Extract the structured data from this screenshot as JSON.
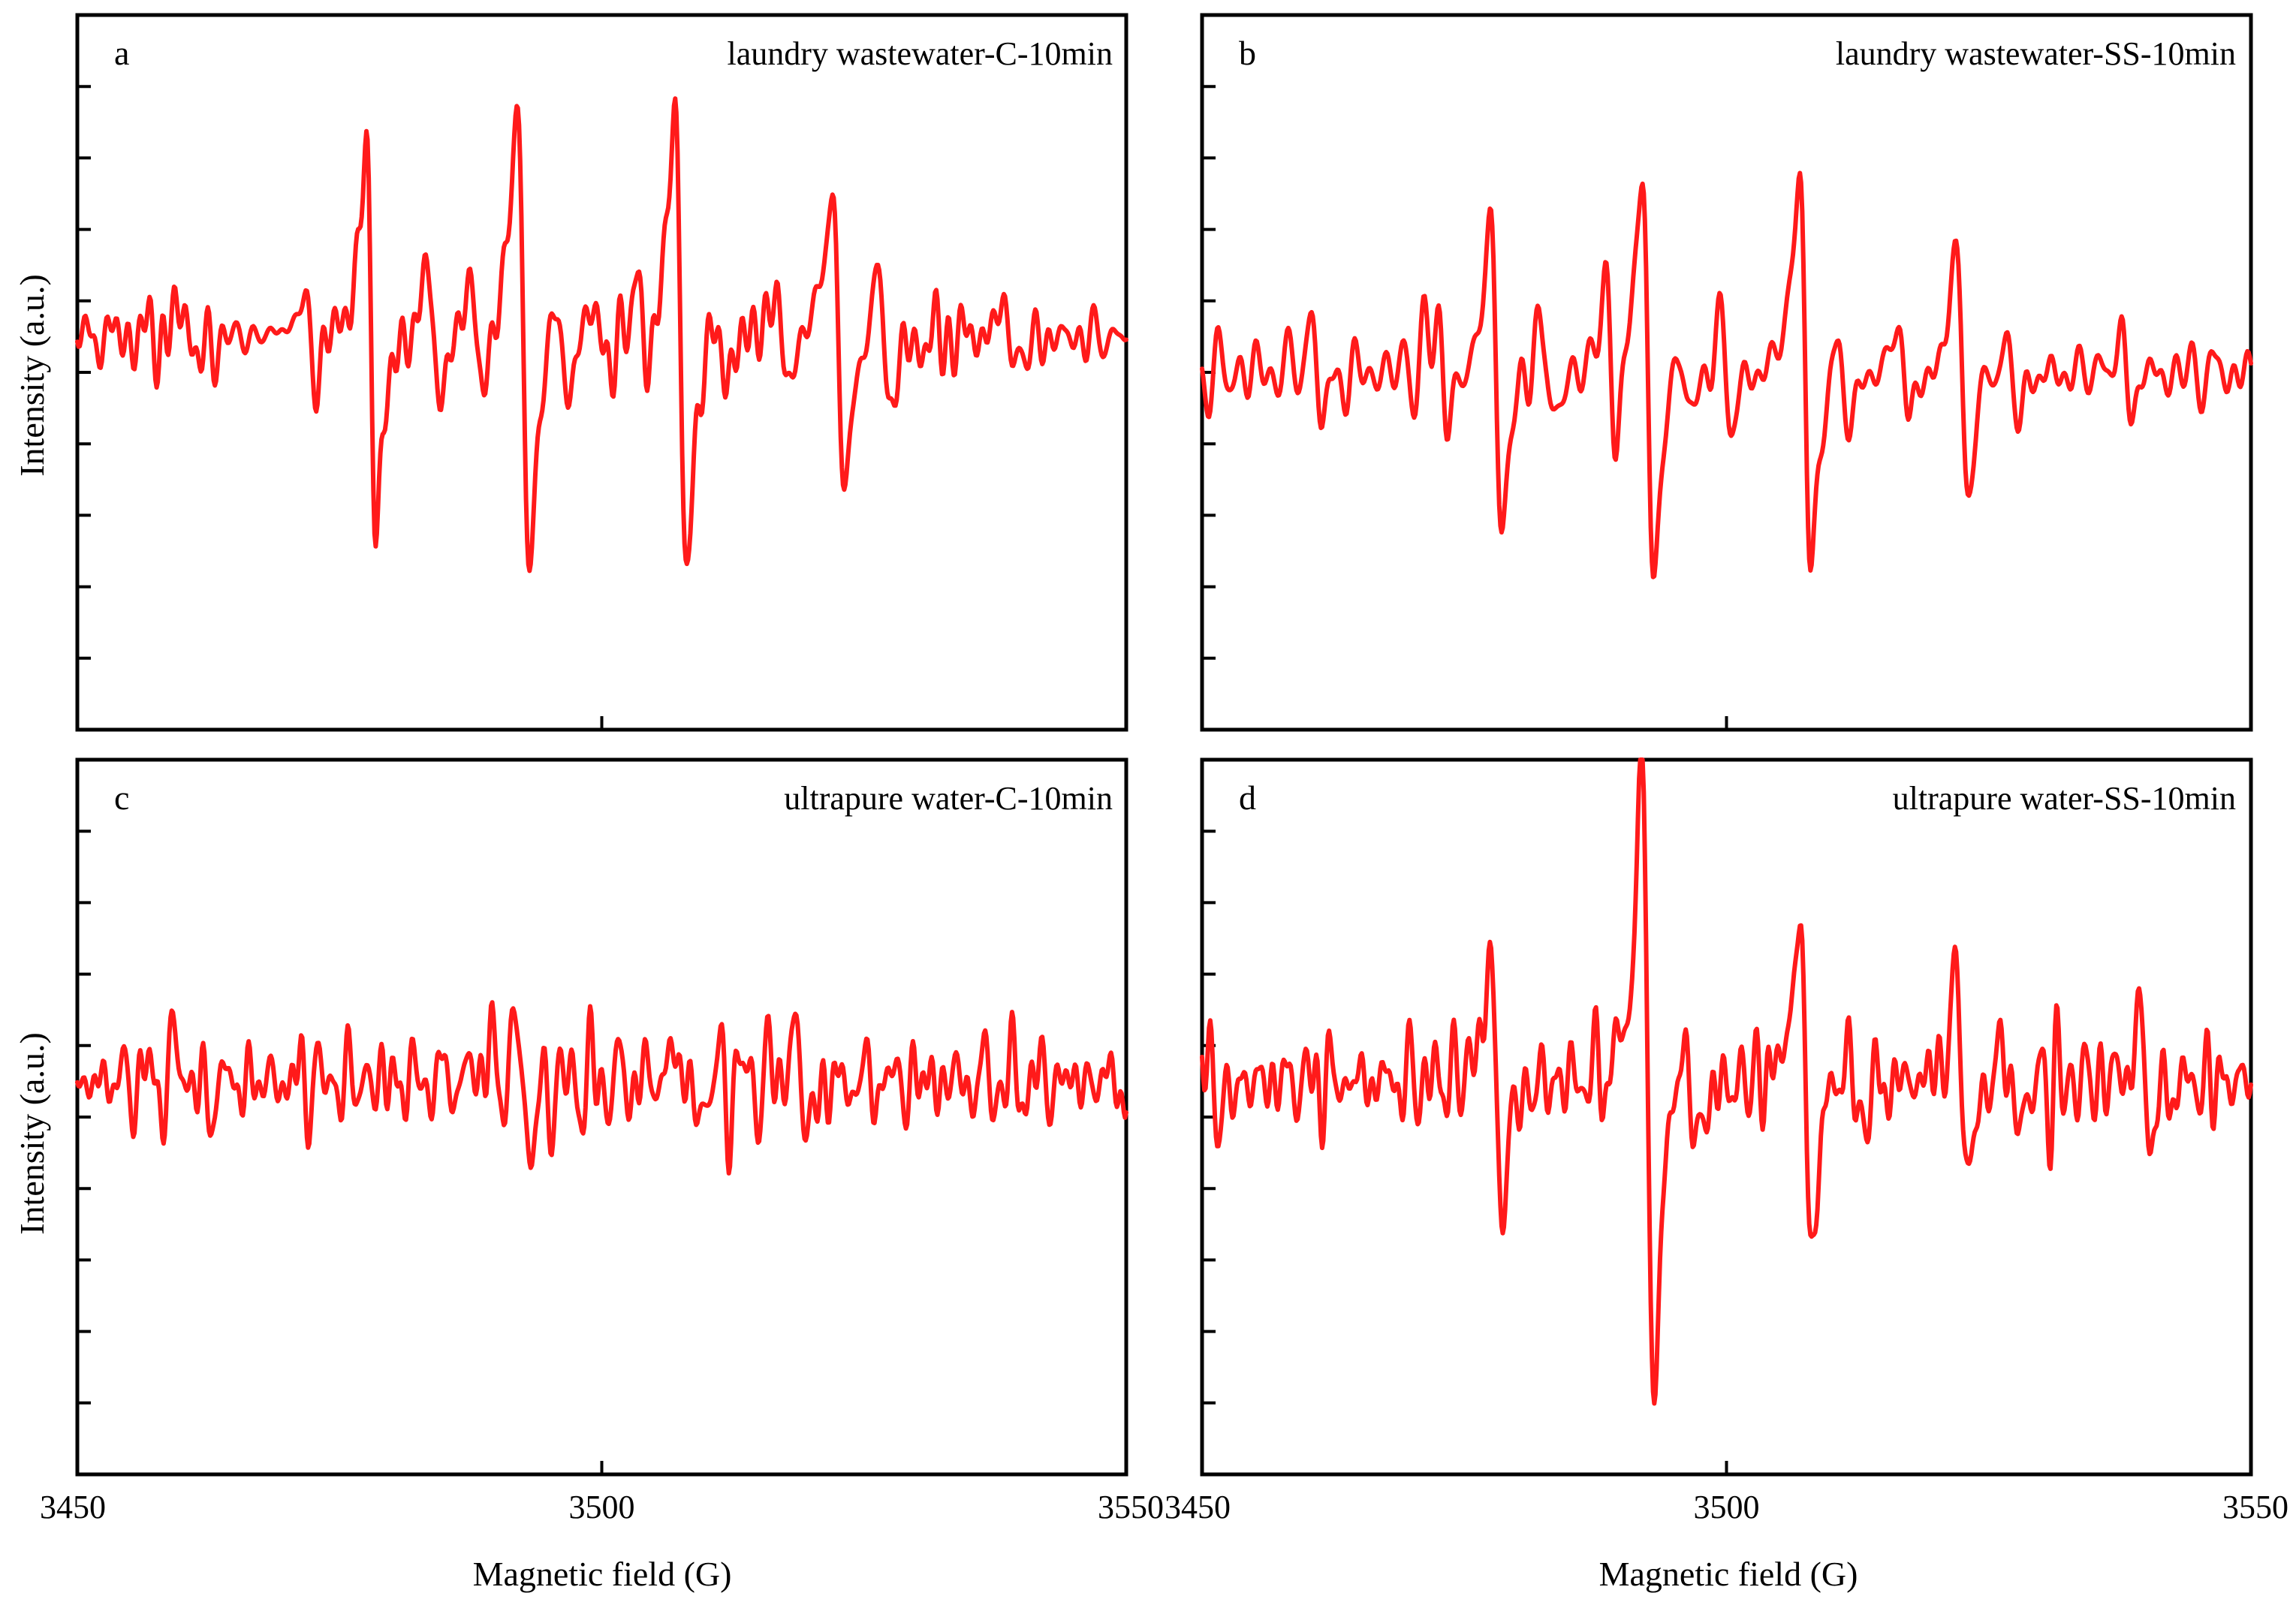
{
  "figure": {
    "ylabel": "Intensity (a.u.)",
    "xlabel": "Magnetic field (G)",
    "trace_color": "#ff1a1a"
  },
  "chart_data": [
    {
      "type": "line",
      "panel": "a",
      "title": "laundry wastewater-C-10min",
      "xlabel": "",
      "ylabel": "Intensity (a.u.)",
      "xlim": [
        3450,
        3550
      ],
      "ylim": [
        -1,
        1
      ],
      "xticks": [
        3450,
        3500,
        3550
      ],
      "baseline": 0.1,
      "noise": 0.06,
      "noise_period": 1.6,
      "peaks": [
        {
          "x": 3461,
          "amp": 0.1
        },
        {
          "x": 3472,
          "amp": 0.12
        },
        {
          "x": 3478,
          "amp": 0.55
        },
        {
          "x": 3484,
          "amp": 0.22
        },
        {
          "x": 3488,
          "amp": 0.18
        },
        {
          "x": 3492.5,
          "amp": 0.8
        },
        {
          "x": 3496,
          "amp": 0.15
        },
        {
          "x": 3500,
          "amp": 0.12
        },
        {
          "x": 3504,
          "amp": 0.15
        },
        {
          "x": 3507.5,
          "amp": 0.8
        },
        {
          "x": 3511,
          "amp": 0.1
        },
        {
          "x": 3517,
          "amp": 0.15
        },
        {
          "x": 3522.5,
          "amp": 0.52
        },
        {
          "x": 3527,
          "amp": 0.2
        },
        {
          "x": 3539,
          "amp": 0.1
        }
      ],
      "seed": 11
    },
    {
      "type": "line",
      "panel": "b",
      "title": "laundry wastewater-SS-10min",
      "xlabel": "",
      "ylabel": "",
      "xlim": [
        3450,
        3550
      ],
      "ylim": [
        -1,
        1
      ],
      "xticks": [
        3450,
        3500,
        3550
      ],
      "baseline": 0.0,
      "noise": 0.06,
      "noise_period": 1.6,
      "peaks": [
        {
          "x": 3461,
          "amp": 0.12
        },
        {
          "x": 3473,
          "amp": 0.18
        },
        {
          "x": 3478,
          "amp": 0.48
        },
        {
          "x": 3483,
          "amp": 0.16
        },
        {
          "x": 3489,
          "amp": 0.22
        },
        {
          "x": 3492.5,
          "amp": 0.68
        },
        {
          "x": 3496,
          "amp": 0.12
        },
        {
          "x": 3500,
          "amp": 0.15
        },
        {
          "x": 3507.5,
          "amp": 0.66
        },
        {
          "x": 3511,
          "amp": 0.14
        },
        {
          "x": 3517,
          "amp": 0.15
        },
        {
          "x": 3522.5,
          "amp": 0.38
        },
        {
          "x": 3527,
          "amp": 0.12
        },
        {
          "x": 3538,
          "amp": 0.08
        }
      ],
      "seed": 23
    },
    {
      "type": "line",
      "panel": "c",
      "title": "ultrapure water-C-10min",
      "xlabel": "Magnetic field (G)",
      "ylabel": "Intensity (a.u.)",
      "xlim": [
        3450,
        3550
      ],
      "ylim": [
        -1,
        1
      ],
      "xticks": [
        3450,
        3500,
        3550
      ],
      "xtick_labels": [
        "3450",
        "3500",
        "3550"
      ],
      "baseline": 0.1,
      "noise": 0.09,
      "noise_period": 1.3,
      "peaks": [
        {
          "x": 3492.5,
          "amp": 0.22
        },
        {
          "x": 3508,
          "amp": 0.12
        },
        {
          "x": 3519,
          "amp": 0.14
        },
        {
          "x": 3490,
          "amp": 0.1
        },
        {
          "x": 3461,
          "amp": 0.1
        }
      ],
      "seed": 37
    },
    {
      "type": "line",
      "panel": "d",
      "title": "ultrapure water-SS-10min",
      "xlabel": "Magnetic field (G)",
      "ylabel": "",
      "xlim": [
        3450,
        3550
      ],
      "ylim": [
        -1,
        1
      ],
      "xticks": [
        3450,
        3500,
        3550
      ],
      "xtick_labels": [
        "3450",
        "3500",
        "3550"
      ],
      "baseline": 0.1,
      "noise": 0.08,
      "noise_period": 1.4,
      "peaks": [
        {
          "x": 3451,
          "amp": 0.12
        },
        {
          "x": 3478,
          "amp": 0.38
        },
        {
          "x": 3492.5,
          "amp": 1.0
        },
        {
          "x": 3496.5,
          "amp": 0.18
        },
        {
          "x": 3507.5,
          "amp": 0.52
        },
        {
          "x": 3512,
          "amp": 0.12
        },
        {
          "x": 3522.5,
          "amp": 0.3
        },
        {
          "x": 3527,
          "amp": 0.14
        },
        {
          "x": 3540,
          "amp": 0.16
        }
      ],
      "seed": 53
    }
  ]
}
